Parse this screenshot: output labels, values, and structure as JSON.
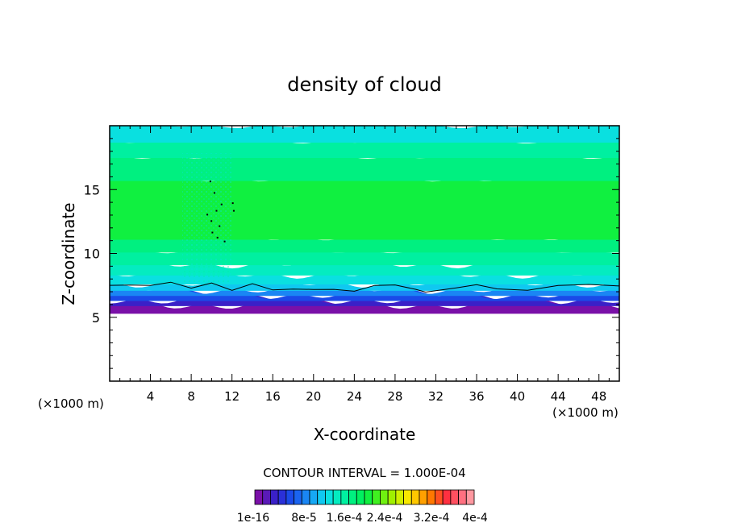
{
  "chart_data": {
    "type": "heatmap",
    "title": "density of cloud",
    "xlabel": "X-coordinate",
    "ylabel": "Z-coordinate",
    "x_unit_left": "(×1000 m)",
    "x_unit_right": "(×1000 m)",
    "xlim": [
      0,
      50
    ],
    "ylim": [
      0,
      20
    ],
    "x_ticks": [
      4,
      8,
      12,
      16,
      20,
      24,
      28,
      32,
      36,
      40,
      44,
      48
    ],
    "x_tick_labels": [
      "4",
      "8",
      "12",
      "16",
      "20",
      "24",
      "28",
      "32",
      "36",
      "40",
      "44",
      "48"
    ],
    "y_ticks": [
      5,
      10,
      15
    ],
    "y_tick_labels": [
      "5",
      "10",
      "15"
    ],
    "contour_interval_text": "CONTOUR INTERVAL = 1.000E-04",
    "colorbar": {
      "colors": [
        "#7a10a8",
        "#5a1ab8",
        "#3a20c8",
        "#2a30d8",
        "#1a4ae8",
        "#1a64f0",
        "#1a86f4",
        "#16a8f4",
        "#10c8f0",
        "#0ae0e0",
        "#04ecc0",
        "#00f0a0",
        "#00f080",
        "#00f060",
        "#10f040",
        "#40f020",
        "#70f010",
        "#a0f000",
        "#d0f000",
        "#f8e800",
        "#ffc800",
        "#ffa000",
        "#ff7800",
        "#ff5020",
        "#ff3040",
        "#ff5060",
        "#ff7080",
        "#ff98a0"
      ],
      "labels": [
        "1e-16",
        "8e-5",
        "1.6e-4",
        "2.4e-4",
        "3.2e-4",
        "4e-4"
      ]
    },
    "field_bands": [
      {
        "z_low": 0,
        "z_high": 5.4,
        "color": "#ffffff"
      },
      {
        "z_low": 5.4,
        "z_high": 6.0,
        "color": "#7a10a8"
      },
      {
        "z_low": 6.0,
        "z_high": 6.4,
        "color": "#3a20c8"
      },
      {
        "z_low": 6.4,
        "z_high": 6.8,
        "color": "#1a4ae8"
      },
      {
        "z_low": 6.8,
        "z_high": 7.2,
        "color": "#1a86f4"
      },
      {
        "z_low": 7.2,
        "z_high": 7.7,
        "color": "#10c8f0"
      },
      {
        "z_low": 7.7,
        "z_high": 8.4,
        "color": "#0ae0e0"
      },
      {
        "z_low": 8.4,
        "z_high": 9.2,
        "color": "#04ecc0"
      },
      {
        "z_low": 9.2,
        "z_high": 10.2,
        "color": "#00f0a0"
      },
      {
        "z_low": 10.2,
        "z_high": 11.2,
        "color": "#00f080"
      },
      {
        "z_low": 11.2,
        "z_high": 15.8,
        "color": "#10f040"
      },
      {
        "z_low": 15.8,
        "z_high": 17.6,
        "color": "#00f080"
      },
      {
        "z_low": 17.6,
        "z_high": 18.8,
        "color": "#00f0a0"
      },
      {
        "z_low": 18.8,
        "z_high": 20,
        "color": "#0ae0e0"
      }
    ],
    "contour_line_z": [
      {
        "x": 0,
        "z": 7.5
      },
      {
        "x": 2,
        "z": 7.6
      },
      {
        "x": 4,
        "z": 7.4
      },
      {
        "x": 6,
        "z": 7.8
      },
      {
        "x": 8,
        "z": 7.3
      },
      {
        "x": 10,
        "z": 7.6
      },
      {
        "x": 12,
        "z": 7.2
      },
      {
        "x": 14,
        "z": 7.6
      },
      {
        "x": 16,
        "z": 7.1
      },
      {
        "x": 18,
        "z": 7.3
      },
      {
        "x": 20,
        "z": 7.1
      },
      {
        "x": 22,
        "z": 7.2
      },
      {
        "x": 24,
        "z": 7.1
      },
      {
        "x": 26,
        "z": 7.4
      },
      {
        "x": 28,
        "z": 7.6
      },
      {
        "x": 30,
        "z": 7.2
      },
      {
        "x": 31,
        "z": 6.9
      },
      {
        "x": 34,
        "z": 7.4
      },
      {
        "x": 36,
        "z": 7.5
      },
      {
        "x": 38,
        "z": 7.2
      },
      {
        "x": 41,
        "z": 7.2
      },
      {
        "x": 44,
        "z": 7.4
      },
      {
        "x": 47,
        "z": 7.6
      },
      {
        "x": 50,
        "z": 7.5
      }
    ]
  }
}
